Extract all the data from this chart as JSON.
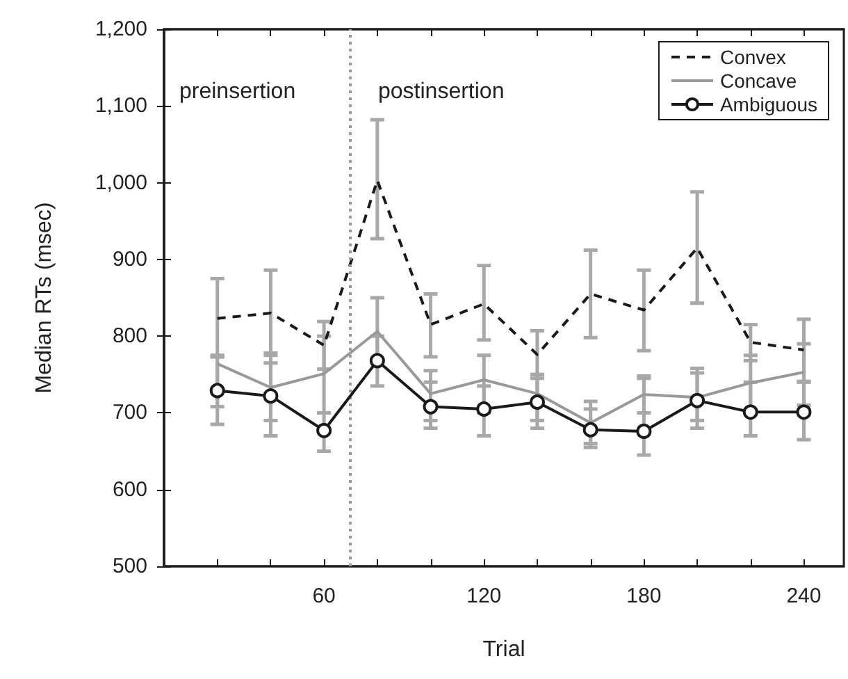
{
  "chart_data": {
    "type": "line",
    "xlabel": "Trial",
    "ylabel": "Median RTs (msec)",
    "x": [
      20,
      40,
      60,
      80,
      100,
      120,
      140,
      160,
      180,
      200,
      220,
      240
    ],
    "xlim": [
      0,
      255
    ],
    "xticks": [
      {
        "value": 20,
        "label": null
      },
      {
        "value": 40,
        "label": null
      },
      60,
      {
        "value": 80,
        "label": null
      },
      {
        "value": 100,
        "label": null
      },
      120,
      {
        "value": 140,
        "label": null
      },
      {
        "value": 160,
        "label": null
      },
      180,
      {
        "value": 200,
        "label": null
      },
      {
        "value": 220,
        "label": null
      },
      240
    ],
    "ylim": [
      500,
      1200
    ],
    "yticks": [
      500,
      600,
      700,
      800,
      900,
      {
        "value": 1000,
        "label": "1,000"
      },
      {
        "value": 1100,
        "label": "1,100"
      },
      {
        "value": 1200,
        "label": "1,200"
      }
    ],
    "series": [
      {
        "name": "Convex",
        "color": "#1a1a1a",
        "line_style": "dashed",
        "marker": "none",
        "values": [
          823,
          830,
          788,
          1003,
          815,
          842,
          776,
          855,
          834,
          915,
          792,
          782
        ],
        "errors": [
          [
            773,
            875
          ],
          [
            778,
            886
          ],
          [
            757,
            819
          ],
          [
            927,
            1082
          ],
          [
            773,
            855
          ],
          [
            795,
            892
          ],
          [
            745,
            807
          ],
          [
            798,
            912
          ],
          [
            781,
            886
          ],
          [
            843,
            988
          ],
          [
            768,
            815
          ],
          [
            741,
            822
          ]
        ]
      },
      {
        "name": "Concave",
        "color": "#999999",
        "line_style": "solid",
        "marker": "none",
        "values": [
          764,
          733,
          751,
          806,
          725,
          743,
          725,
          687,
          724,
          720,
          739,
          753
        ],
        "errors": [
          [
            708,
            773
          ],
          [
            690,
            775
          ],
          [
            700,
            800
          ],
          [
            770,
            850
          ],
          [
            690,
            755
          ],
          [
            700,
            775
          ],
          [
            690,
            750
          ],
          [
            660,
            715
          ],
          [
            700,
            748
          ],
          [
            690,
            758
          ],
          [
            700,
            775
          ],
          [
            710,
            790
          ]
        ]
      },
      {
        "name": "Ambiguous",
        "color": "#1a1a1a",
        "line_style": "solid",
        "marker": "circle",
        "values": [
          729,
          722,
          677,
          768,
          708,
          705,
          714,
          678,
          676,
          716,
          701,
          701
        ],
        "errors": [
          [
            685,
            775
          ],
          [
            670,
            765
          ],
          [
            650,
            700
          ],
          [
            735,
            800
          ],
          [
            680,
            740
          ],
          [
            670,
            735
          ],
          [
            680,
            750
          ],
          [
            655,
            705
          ],
          [
            645,
            745
          ],
          [
            680,
            752
          ],
          [
            670,
            740
          ],
          [
            665,
            740
          ]
        ]
      }
    ],
    "ref_lines": [
      {
        "axis": "x",
        "value": 70,
        "label": null,
        "color": "#999999",
        "line_style": "dotted"
      }
    ],
    "annotations": [
      "preinsertion",
      "postinsertion"
    ],
    "legend": "top right",
    "grid": false
  }
}
